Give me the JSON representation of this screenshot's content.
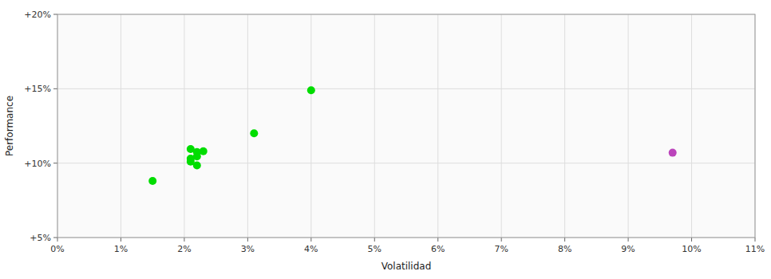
{
  "chart_data": {
    "type": "scatter",
    "xlabel": "Volatilidad",
    "ylabel": "Performance",
    "xlim": [
      0.0,
      0.11
    ],
    "ylim": [
      0.05,
      0.2
    ],
    "xticks": [
      {
        "value": 0.0,
        "label": "0%"
      },
      {
        "value": 0.01,
        "label": "1%"
      },
      {
        "value": 0.02,
        "label": "2%"
      },
      {
        "value": 0.03,
        "label": "3%"
      },
      {
        "value": 0.04,
        "label": "4%"
      },
      {
        "value": 0.05,
        "label": "5%"
      },
      {
        "value": 0.06,
        "label": "6%"
      },
      {
        "value": 0.07,
        "label": "7%"
      },
      {
        "value": 0.08,
        "label": "8%"
      },
      {
        "value": 0.09,
        "label": "9%"
      },
      {
        "value": 0.1,
        "label": "10%"
      },
      {
        "value": 0.11,
        "label": "11%"
      }
    ],
    "yticks": [
      {
        "value": 0.05,
        "label": "+5%"
      },
      {
        "value": 0.1,
        "label": "+10%"
      },
      {
        "value": 0.15,
        "label": "+15%"
      },
      {
        "value": 0.2,
        "label": "+20%"
      }
    ],
    "grid": true,
    "series": [
      {
        "color": "#00dd00",
        "x": [
          0.015,
          0.021,
          0.022,
          0.021,
          0.023,
          0.022,
          0.021,
          0.022,
          0.031,
          0.04
        ],
        "values": [
          0.088,
          0.103,
          0.1075,
          0.1095,
          0.108,
          0.1045,
          0.101,
          0.0985,
          0.12,
          0.149
        ]
      },
      {
        "color": "#bb44bb",
        "x": [
          0.097
        ],
        "values": [
          0.107
        ]
      }
    ]
  }
}
